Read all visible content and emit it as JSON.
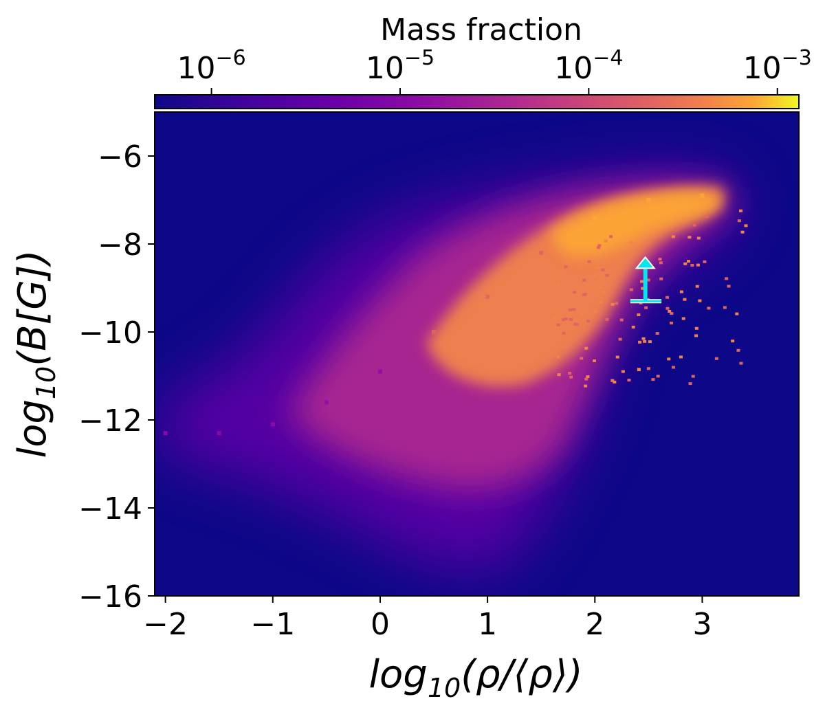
{
  "chart_data": {
    "type": "heatmap",
    "title": "",
    "xlabel_parts": {
      "prefix": "log",
      "sub": "10",
      "suffix": "(ρ/⟨ρ⟩)"
    },
    "ylabel_parts": {
      "prefix": "log",
      "sub": "10",
      "suffix": "(B[G])"
    },
    "xlim": [
      -2.1,
      3.9
    ],
    "ylim": [
      -16,
      -5
    ],
    "xticks": [
      -2,
      -1,
      0,
      1,
      2,
      3
    ],
    "yticks": [
      -16,
      -14,
      -12,
      -10,
      -8,
      -6
    ],
    "xtick_labels": [
      "−2",
      "−1",
      "0",
      "1",
      "2",
      "3"
    ],
    "ytick_labels": [
      "−16",
      "−14",
      "−12",
      "−10",
      "−8",
      "−6"
    ],
    "background_color": "#0d0887",
    "colormap": "plasma",
    "colorbar": {
      "label": "Mass fraction",
      "scale": "log",
      "range": [
        5e-07,
        0.0013
      ],
      "ticks": [
        {
          "value": 1e-06,
          "base": "10",
          "exp": "−6"
        },
        {
          "value": 1e-05,
          "base": "10",
          "exp": "−5"
        },
        {
          "value": 0.0001,
          "base": "10",
          "exp": "−4"
        },
        {
          "value": 0.001,
          "base": "10",
          "exp": "−3"
        }
      ]
    },
    "density_ridge": [
      {
        "x": -2.0,
        "y": -12.3,
        "weight": 8e-06
      },
      {
        "x": -1.5,
        "y": -12.3,
        "weight": 1e-05
      },
      {
        "x": -1.0,
        "y": -12.1,
        "weight": 1.5e-05
      },
      {
        "x": -0.5,
        "y": -11.6,
        "weight": 2.5e-05
      },
      {
        "x": 0.0,
        "y": -10.9,
        "weight": 4e-05
      },
      {
        "x": 0.5,
        "y": -10.0,
        "weight": 8e-05
      },
      {
        "x": 1.0,
        "y": -9.2,
        "weight": 0.00015
      },
      {
        "x": 1.5,
        "y": -8.2,
        "weight": 0.0003
      },
      {
        "x": 2.0,
        "y": -7.4,
        "weight": 0.0005
      },
      {
        "x": 2.5,
        "y": -7.0,
        "weight": 0.0008
      },
      {
        "x": 3.0,
        "y": -6.9,
        "weight": 0.0006
      }
    ],
    "annotation": {
      "type": "lower-limit-arrow",
      "color": "#00e5ee",
      "x": 2.47,
      "x_err": [
        2.33,
        2.62
      ],
      "y_base": -9.3,
      "y_tip": -8.3
    }
  }
}
